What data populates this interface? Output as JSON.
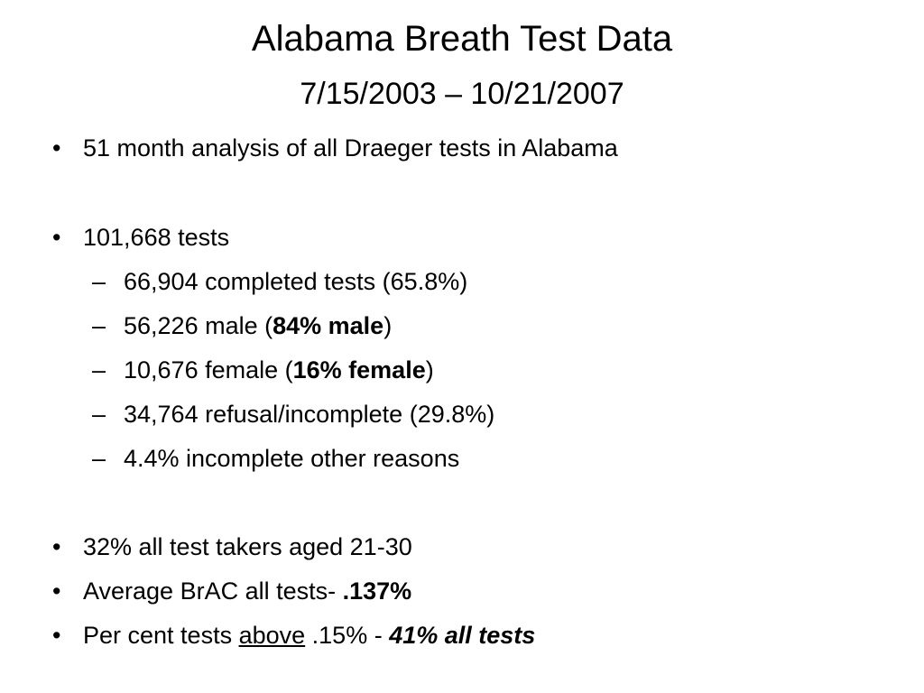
{
  "slide": {
    "title": "Alabama Breath Test Data",
    "subtitle": "7/15/2003 – 10/21/2007",
    "bullet_glyph": "•",
    "dash_glyph": "–",
    "items": [
      {
        "text": "51 month analysis of all Draeger tests in Alabama"
      },
      {
        "text": "101,668 tests"
      },
      {
        "text": "66,904 completed tests (65.8%)"
      },
      {
        "pre": "56,226 male (",
        "bold": "84% male",
        "post": ")"
      },
      {
        "pre": "10,676 female (",
        "bold": "16% female",
        "post": ")"
      },
      {
        "text": "34,764 refusal/incomplete (29.8%)"
      },
      {
        "text": "4.4% incomplete other reasons"
      },
      {
        "text": "32% all test takers aged 21-30"
      },
      {
        "pre": "Average BrAC all tests- ",
        "bold": ".137%"
      },
      {
        "pre": "Per cent tests ",
        "underline": "above",
        "mid": " .15% - ",
        "bold_italic": "41% all tests"
      }
    ]
  }
}
